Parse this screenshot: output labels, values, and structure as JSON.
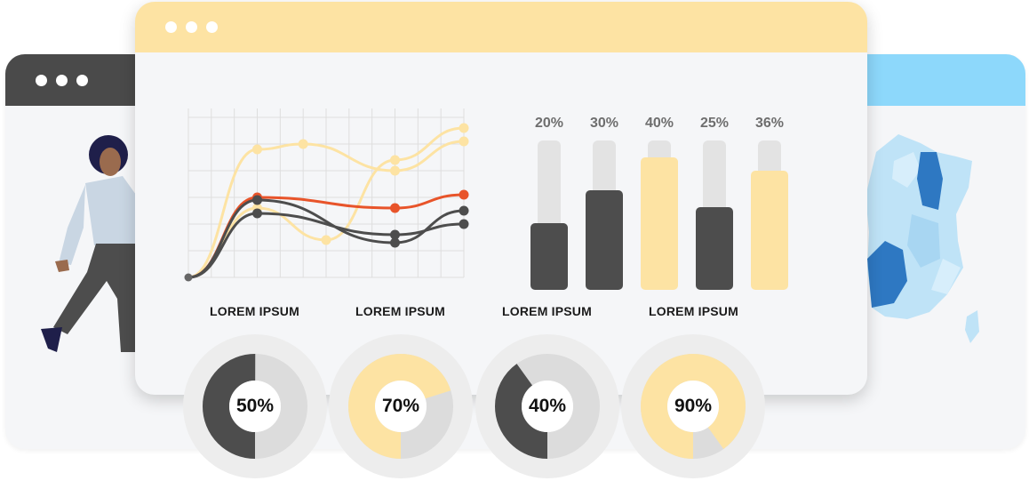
{
  "bar_chart": {
    "bars": [
      {
        "label": "20%",
        "value": 20,
        "color": "#4d4d4d"
      },
      {
        "label": "30%",
        "value": 30,
        "color": "#4d4d4d"
      },
      {
        "label": "40%",
        "value": 40,
        "color": "#fde3a3"
      },
      {
        "label": "25%",
        "value": 25,
        "color": "#4d4d4d"
      },
      {
        "label": "36%",
        "value": 36,
        "color": "#fde3a3"
      }
    ]
  },
  "sections": {
    "labels": [
      "LOREM IPSUM",
      "LOREM IPSUM",
      "LOREM IPSUM",
      "LOREM IPSUM"
    ]
  },
  "donuts": [
    {
      "label": "50%",
      "value": 50,
      "color": "#4d4d4d"
    },
    {
      "label": "70%",
      "value": 70,
      "color": "#fde3a3"
    },
    {
      "label": "40%",
      "value": 40,
      "color": "#4d4d4d"
    },
    {
      "label": "90%",
      "value": 90,
      "color": "#fde3a3"
    }
  ],
  "line_chart": {
    "series": [
      {
        "color": "#fde3a3",
        "points": [
          [
            0,
            0
          ],
          [
            3,
            2.6
          ],
          [
            6,
            1.4
          ],
          [
            9,
            4.4
          ],
          [
            12,
            5.6
          ]
        ]
      },
      {
        "color": "#fde3a3",
        "points": [
          [
            0,
            0
          ],
          [
            3,
            4.8
          ],
          [
            5,
            5.0
          ],
          [
            9,
            4.0
          ],
          [
            12,
            5.1
          ]
        ]
      },
      {
        "color": "#e8542a",
        "points": [
          [
            0,
            0
          ],
          [
            3,
            3.0
          ],
          [
            9,
            2.6
          ],
          [
            12,
            3.1
          ]
        ]
      },
      {
        "color": "#4d4d4d",
        "points": [
          [
            0,
            0
          ],
          [
            3,
            2.9
          ],
          [
            9,
            1.3
          ],
          [
            12,
            2.5
          ]
        ]
      },
      {
        "color": "#4d4d4d",
        "points": [
          [
            0,
            0
          ],
          [
            3,
            2.4
          ],
          [
            9,
            1.6
          ],
          [
            12,
            2.0
          ]
        ]
      }
    ]
  },
  "colors": {
    "dark": "#4d4d4d",
    "yellow": "#fde3a3",
    "orange": "#e8542a",
    "track": "#e3e3e3",
    "map_dark": "#2e78c2",
    "map_light": "#bfe3f7"
  },
  "icons": [
    "window-dots-icon",
    "person-walking-illustration",
    "france-map-illustration"
  ]
}
